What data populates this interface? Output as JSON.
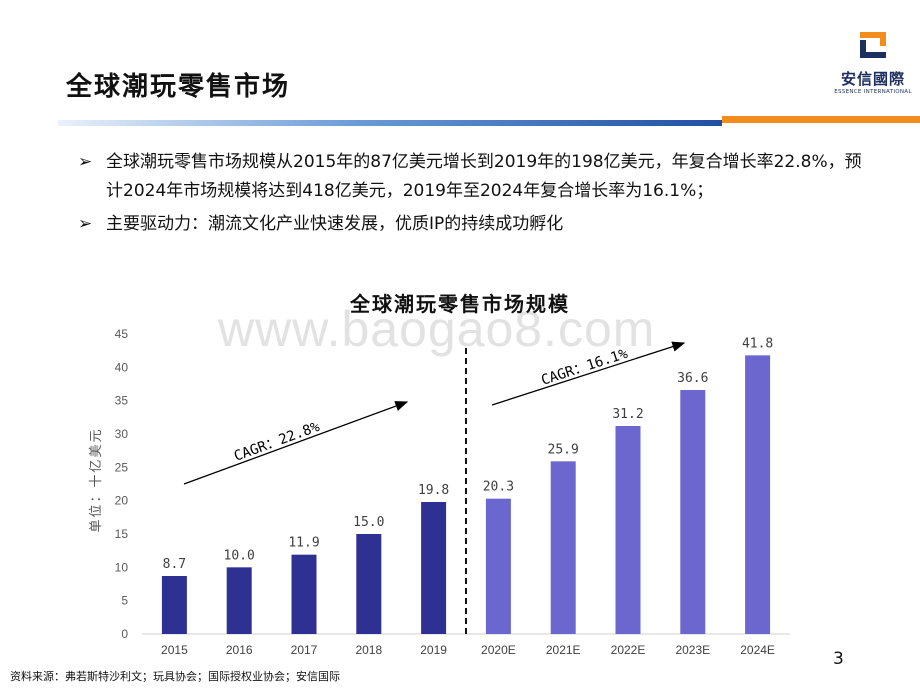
{
  "header": {
    "title": "全球潮玩零售市场",
    "logo_cn": "安信國際",
    "logo_en": "ESSENCE INTERNATIONAL"
  },
  "bullets": [
    {
      "marker": "➢",
      "text": "全球潮玩零售市场规模从2015年的87亿美元增长到2019年的198亿美元，年复合增长率22.8%，预计2024年市场规模将达到418亿美元，2019年至2024年复合增长率为16.1%；"
    },
    {
      "marker": "➢",
      "text": "主要驱动力：潮流文化产业快速发展，优质IP的持续成功孵化"
    }
  ],
  "watermark": "www.baogao8.com",
  "chart_data": {
    "type": "bar",
    "title": "全球潮玩零售市场规模",
    "ylabel": "单位：十亿美元",
    "categories": [
      "2015",
      "2016",
      "2017",
      "2018",
      "2019",
      "2020E",
      "2021E",
      "2022E",
      "2023E",
      "2024E"
    ],
    "values": [
      8.7,
      10.0,
      11.9,
      15.0,
      19.8,
      20.3,
      25.9,
      31.2,
      36.6,
      41.8
    ],
    "value_labels": [
      "8.7",
      "10.0",
      "11.9",
      "15.0",
      "19.8",
      "20.3",
      "25.9",
      "31.2",
      "36.6",
      "41.8"
    ],
    "ylim": [
      0,
      45
    ],
    "yticks": [
      0,
      5,
      10,
      15,
      20,
      25,
      30,
      35,
      40,
      45
    ],
    "grid": false,
    "colors": {
      "historical": "#2e3192",
      "forecast": "#6b67cf"
    },
    "annotations": [
      {
        "text": "CAGR：22.8%"
      },
      {
        "text": "CAGR：16.1%"
      }
    ]
  },
  "footer": {
    "source": "资料来源：弗若斯特沙利文；玩具协会；国际授权业协会；安信国际",
    "page": "3"
  }
}
